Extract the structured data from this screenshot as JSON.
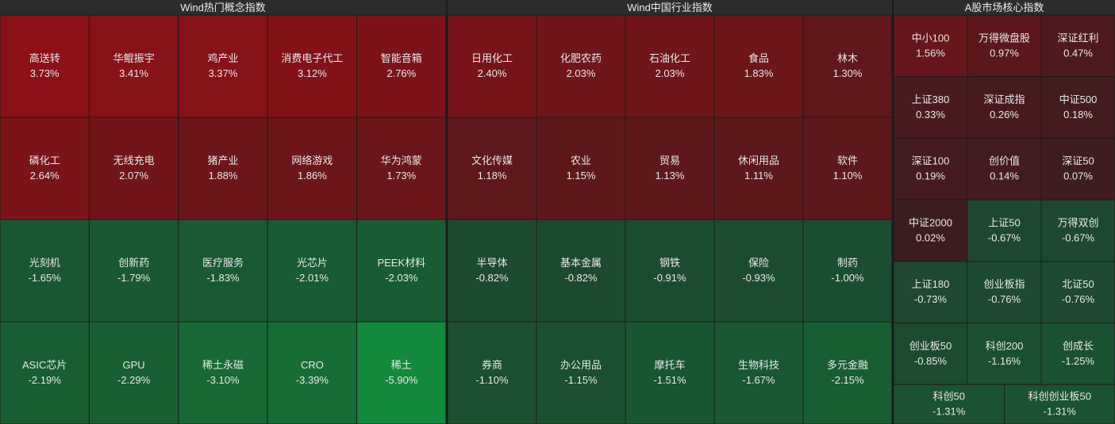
{
  "chart_data": [
    {
      "type": "heatmap",
      "title": "Wind热门概念指数",
      "categories": [
        "高送转",
        "华鲲振宇",
        "鸡产业",
        "消费电子代工",
        "智能音箱",
        "磷化工",
        "无线充电",
        "猪产业",
        "网络游戏",
        "华为鸿蒙",
        "光刻机",
        "创新药",
        "医疗服务",
        "光芯片",
        "PEEK材料",
        "ASIC芯片",
        "GPU",
        "稀土永磁",
        "CRO",
        "稀土"
      ],
      "values": [
        3.73,
        3.41,
        3.37,
        3.12,
        2.76,
        2.64,
        2.07,
        1.88,
        1.86,
        1.73,
        -1.65,
        -1.79,
        -1.83,
        -2.01,
        -2.03,
        -2.19,
        -2.29,
        -3.1,
        -3.39,
        -5.9
      ],
      "value_labels": [
        "3.73%",
        "3.41%",
        "3.37%",
        "3.12%",
        "2.76%",
        "2.64%",
        "2.07%",
        "1.88%",
        "1.86%",
        "1.73%",
        "-1.65%",
        "-1.79%",
        "-1.83%",
        "-2.01%",
        "-2.03%",
        "-2.19%",
        "-2.29%",
        "-3.10%",
        "-3.39%",
        "-5.90%"
      ]
    },
    {
      "type": "heatmap",
      "title": "Wind中国行业指数",
      "categories": [
        "日用化工",
        "化肥农药",
        "石油化工",
        "食品",
        "林木",
        "文化传媒",
        "农业",
        "贸易",
        "休闲用品",
        "软件",
        "半导体",
        "基本金属",
        "钢铁",
        "保险",
        "制药",
        "券商",
        "办公用品",
        "摩托车",
        "生物科技",
        "多元金融"
      ],
      "values": [
        2.4,
        2.03,
        2.03,
        1.83,
        1.3,
        1.18,
        1.15,
        1.13,
        1.11,
        1.1,
        -0.82,
        -0.82,
        -0.91,
        -0.93,
        -1.0,
        -1.1,
        -1.15,
        -1.51,
        -1.67,
        -2.15
      ],
      "value_labels": [
        "2.40%",
        "2.03%",
        "2.03%",
        "1.83%",
        "1.30%",
        "1.18%",
        "1.15%",
        "1.13%",
        "1.11%",
        "1.10%",
        "-0.82%",
        "-0.82%",
        "-0.91%",
        "-0.93%",
        "-1.00%",
        "-1.10%",
        "-1.15%",
        "-1.51%",
        "-1.67%",
        "-2.15%"
      ]
    },
    {
      "type": "heatmap",
      "title": "A股市场核心指数",
      "categories": [
        "中小100",
        "万得微盘股",
        "深证红利",
        "上证380",
        "深证成指",
        "中证500",
        "深证100",
        "创价值",
        "深证50",
        "中证2000",
        "上证50",
        "万得双创",
        "上证180",
        "创业板指",
        "北证50",
        "创业板50",
        "科创200",
        "创成长",
        "科创50",
        "科创创业板50"
      ],
      "values": [
        1.56,
        0.97,
        0.47,
        0.33,
        0.26,
        0.18,
        0.19,
        0.14,
        0.07,
        0.02,
        -0.67,
        -0.67,
        -0.73,
        -0.76,
        -0.76,
        -0.85,
        -1.16,
        -1.25,
        -1.31,
        -1.31
      ],
      "value_labels": [
        "1.56%",
        "0.97%",
        "0.47%",
        "0.33%",
        "0.26%",
        "0.18%",
        "0.19%",
        "0.14%",
        "0.07%",
        "0.02%",
        "-0.67%",
        "-0.67%",
        "-0.73%",
        "-0.76%",
        "-0.76%",
        "-0.85%",
        "-1.16%",
        "-1.25%",
        "-1.31%",
        "-1.31%"
      ]
    }
  ]
}
